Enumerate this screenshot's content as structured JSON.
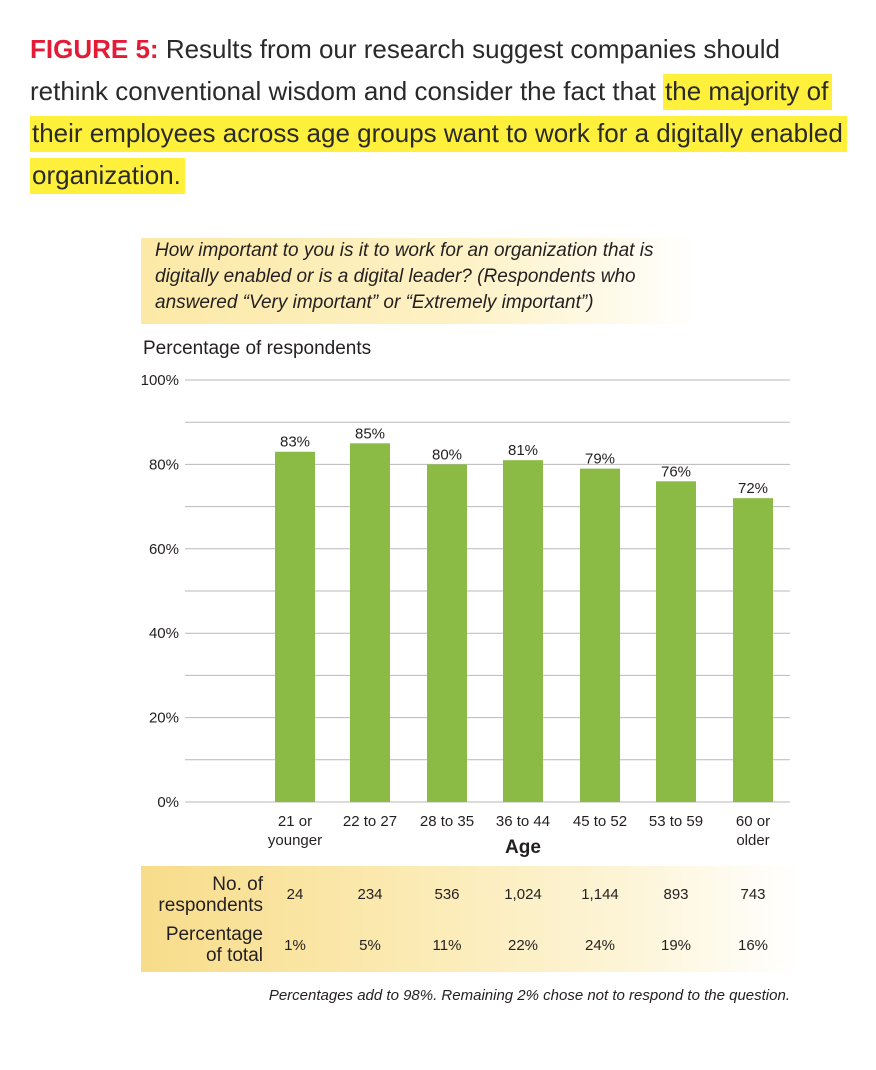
{
  "figure": {
    "label": "FIGURE 5:",
    "text_plain": "Results from our research suggest companies should rethink conventional wisdom and consider the fact that",
    "text_highlight": "the majority of their employees across age groups want to work for a digitally enabled organization."
  },
  "question": {
    "line1": "How important to you is it to work for an organization that is",
    "line2": "digitally enabled or is a digital leader? (Respondents who",
    "line3": "answered “Very important” or “Extremely important”)"
  },
  "chart_data": {
    "type": "bar",
    "ylabel": "Percentage of respondents",
    "xlabel": "Age",
    "categories": [
      "21 or younger",
      "22 to 27",
      "28 to 35",
      "36 to 44",
      "45 to 52",
      "53 to 59",
      "60 or older"
    ],
    "category_lines": [
      [
        "21 or",
        "younger"
      ],
      [
        "22 to 27"
      ],
      [
        "28 to 35"
      ],
      [
        "36 to 44"
      ],
      [
        "45 to 52"
      ],
      [
        "53 to 59"
      ],
      [
        "60 or",
        "older"
      ]
    ],
    "values": [
      83,
      85,
      80,
      81,
      79,
      76,
      72
    ],
    "value_labels": [
      "83%",
      "85%",
      "80%",
      "81%",
      "79%",
      "76%",
      "72%"
    ],
    "ylim": [
      0,
      100
    ],
    "yticks": [
      0,
      20,
      40,
      60,
      80,
      100
    ],
    "ytick_labels": [
      "0%",
      "20%",
      "40%",
      "60%",
      "80%",
      "100%"
    ],
    "grid": true,
    "bar_color": "#8bbb44"
  },
  "table": {
    "row1_label_line1": "No. of",
    "row1_label_line2": "respondents",
    "row2_label_line1": "Percentage",
    "row2_label_line2": "of total",
    "respondents": [
      "24",
      "234",
      "536",
      "1,024",
      "1,144",
      "893",
      "743"
    ],
    "percent_of_total": [
      "1%",
      "5%",
      "11%",
      "22%",
      "24%",
      "19%",
      "16%"
    ]
  },
  "footnote": "Percentages add to 98%.  Remaining 2% chose not to respond to the question."
}
